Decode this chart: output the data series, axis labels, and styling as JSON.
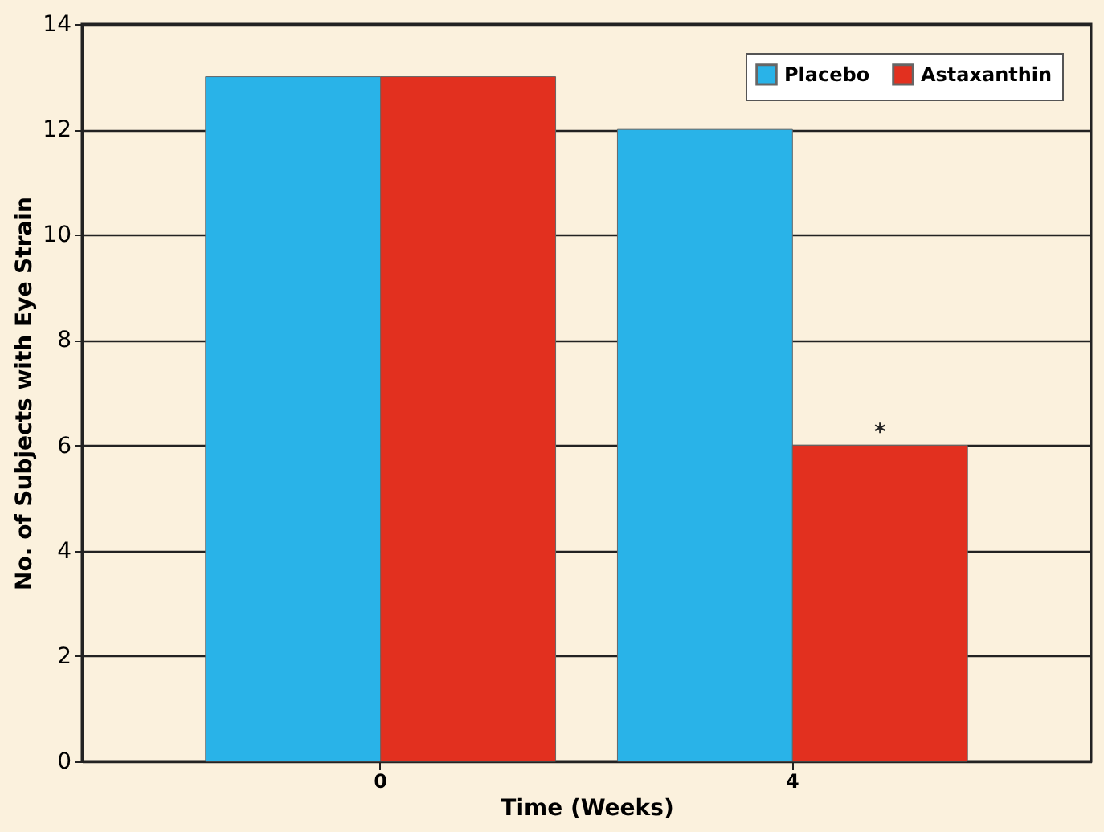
{
  "chart_data": {
    "type": "bar",
    "xlabel": "Time (Weeks)",
    "ylabel": "No. of Subjects with Eye Strain",
    "categories": [
      "0",
      "4"
    ],
    "series": [
      {
        "name": "Placebo",
        "color": "#29b3e8",
        "values": [
          13,
          12
        ]
      },
      {
        "name": "Astaxanthin",
        "color": "#e2301f",
        "values": [
          13,
          6
        ]
      }
    ],
    "ylim": [
      0,
      14
    ],
    "yticks": [
      0,
      2,
      4,
      6,
      8,
      10,
      12,
      14
    ],
    "grid": "y",
    "legend": "top right",
    "annotations": [
      "*"
    ]
  }
}
